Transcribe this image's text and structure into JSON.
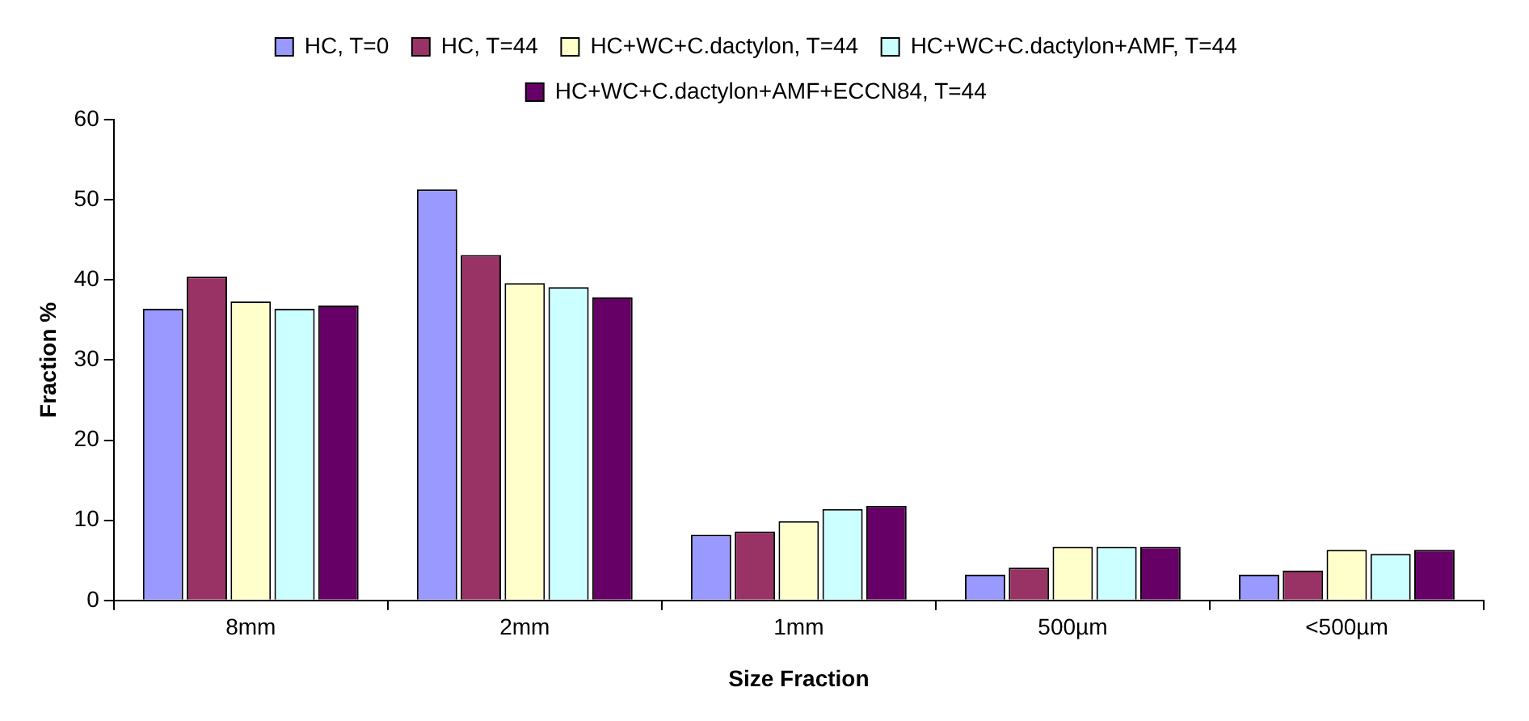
{
  "chart_data": {
    "type": "bar",
    "xlabel": "Size Fraction",
    "ylabel": "Fraction %",
    "categories": [
      "8mm",
      "2mm",
      "1mm",
      "500µm",
      "<500µm"
    ],
    "series": [
      {
        "name": "HC, T=0",
        "color": "#9999ff",
        "values": [
          36.4,
          51.3,
          8.2,
          3.2,
          3.2
        ]
      },
      {
        "name": "HC, T=44",
        "color": "#993366",
        "values": [
          40.4,
          43.1,
          8.6,
          4.1,
          3.7
        ]
      },
      {
        "name": "HC+WC+C.dactylon, T=44",
        "color": "#ffffcc",
        "values": [
          37.3,
          39.6,
          9.9,
          6.7,
          6.3
        ]
      },
      {
        "name": "HC+WC+C.dactylon+AMF, T=44",
        "color": "#ccffff",
        "values": [
          36.4,
          39.1,
          11.4,
          6.7,
          5.8
        ]
      },
      {
        "name": "HC+WC+C.dactylon+AMF+ECCN84, T=44",
        "color": "#660066",
        "values": [
          36.8,
          37.8,
          11.8,
          6.7,
          6.3
        ]
      }
    ],
    "ylim": [
      0,
      60
    ],
    "yticks": [
      0,
      10,
      20,
      30,
      40,
      50,
      60
    ],
    "grid": false,
    "legend": "top"
  }
}
